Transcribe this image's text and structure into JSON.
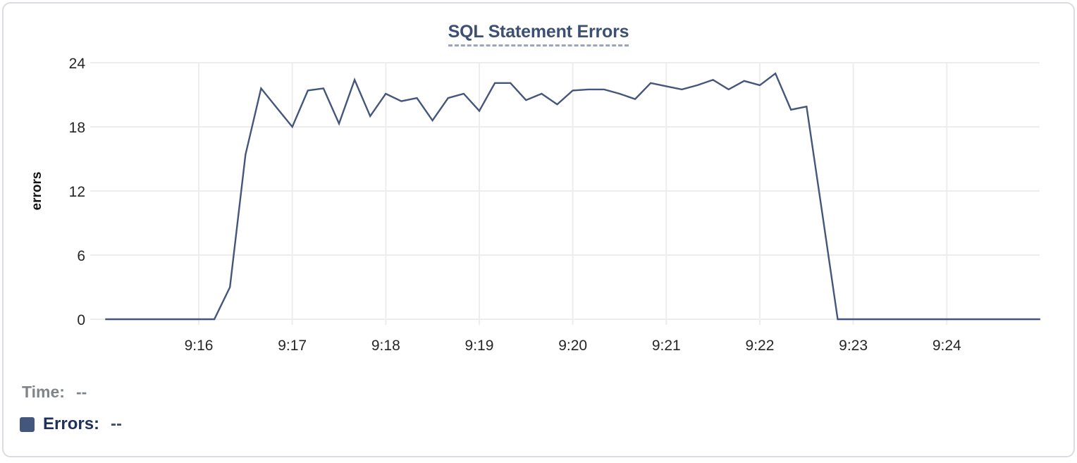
{
  "chart": {
    "title": "SQL Statement Errors"
  },
  "legend": {
    "time": {
      "label": "Time:",
      "value": "--"
    },
    "errors": {
      "label": "Errors:",
      "value": "--",
      "swatch_color": "#44567b"
    }
  },
  "chart_data": {
    "type": "line",
    "title": "SQL Statement Errors",
    "xlabel": "",
    "ylabel": "errors",
    "ylim": [
      0,
      24
    ],
    "y_ticks": [
      0,
      6,
      12,
      18,
      24
    ],
    "x_tick_labels": [
      "9:16",
      "9:17",
      "9:18",
      "9:19",
      "9:20",
      "9:21",
      "9:22",
      "9:23",
      "9:24"
    ],
    "x_start": "9:15:00",
    "x_end": "9:25:00",
    "sample_interval_seconds": 10,
    "grid": true,
    "legend_position": "bottom-left",
    "series": [
      {
        "name": "Errors",
        "color": "#44567b",
        "values": [
          0,
          0,
          0,
          0,
          0,
          0,
          0,
          0,
          3,
          15.4,
          21.6,
          19.8,
          18,
          21.4,
          21.6,
          18.3,
          22.4,
          19,
          21.1,
          20.4,
          20.7,
          18.6,
          20.7,
          21.1,
          19.5,
          22.1,
          22.1,
          20.5,
          21.1,
          20.1,
          21.4,
          21.5,
          21.5,
          21.1,
          20.6,
          22.1,
          21.8,
          21.5,
          21.9,
          22.4,
          21.5,
          22.3,
          21.9,
          23,
          19.6,
          19.9,
          10,
          0,
          0,
          0,
          0,
          0,
          0,
          0,
          0,
          0,
          0,
          0,
          0,
          0,
          0
        ]
      }
    ]
  }
}
